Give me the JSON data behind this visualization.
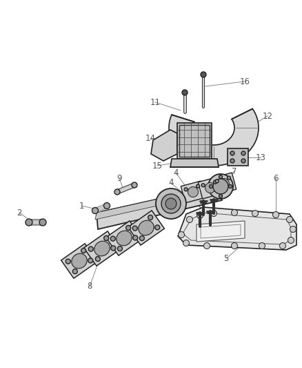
{
  "background_color": "#ffffff",
  "fig_width": 4.38,
  "fig_height": 5.33,
  "dpi": 100,
  "line_color": "#222222",
  "label_color": "#555555",
  "label_fontsize": 8.5,
  "leader_color": "#888888"
}
